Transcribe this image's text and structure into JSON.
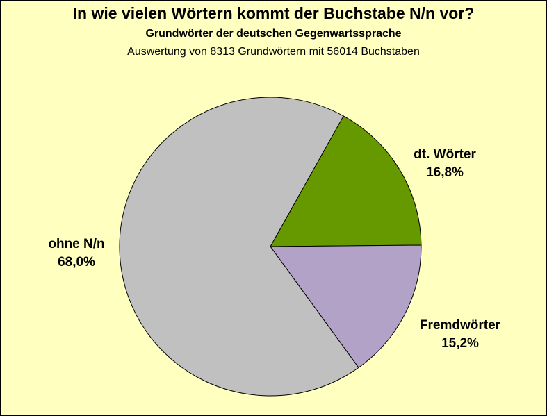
{
  "title": "In wie vielen Wörtern kommt der Buchstabe N/n vor?",
  "subtitle": "Grundwörter der deutschen Gegenwartssprache",
  "subtitle2": "Auswertung von 8313 Grundwörtern mit 56014 Buchstaben",
  "colors": {
    "background": "#ffffc0"
  },
  "chart_data": {
    "type": "pie",
    "title": "In wie vielen Wörtern kommt der Buchstabe N/n vor?",
    "slices": [
      {
        "label": "dt. Wörter",
        "value": 16.8,
        "value_label": "16,8%",
        "color": "#669900"
      },
      {
        "label": "Fremdwörter",
        "value": 15.2,
        "value_label": "15,2%",
        "color": "#b3a2c7"
      },
      {
        "label": "ohne N/n",
        "value": 68.0,
        "value_label": "68,0%",
        "color": "#c0c0c0"
      }
    ],
    "start_angle_deg": -61,
    "direction": "clockwise",
    "legend": "none"
  }
}
